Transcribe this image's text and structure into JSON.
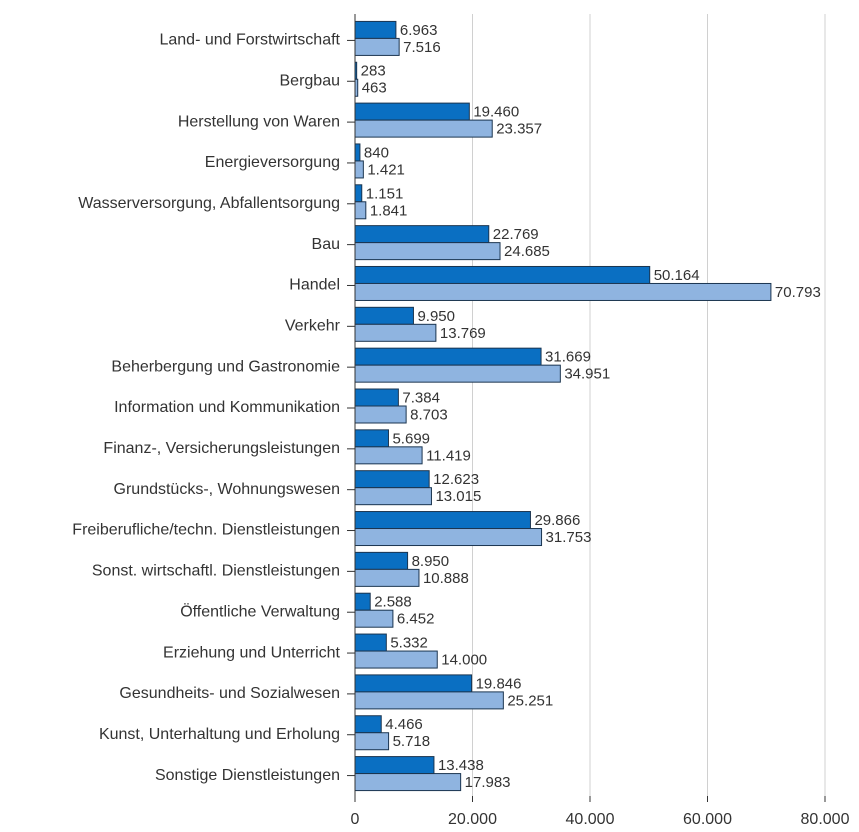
{
  "chart_data": {
    "type": "bar",
    "orientation": "horizontal",
    "categories": [
      "Land- und Forstwirtschaft",
      "Bergbau",
      "Herstellung von Waren",
      "Energieversorgung",
      "Wasserversorgung, Abfallentsorgung",
      "Bau",
      "Handel",
      "Verkehr",
      "Beherbergung und Gastronomie",
      "Information und Kommunikation",
      "Finanz-, Versicherungsleistungen",
      "Grundstücks-, Wohnungswesen",
      "Freiberufliche/techn. Dienstleistungen",
      "Sonst. wirtschaftl. Dienstleistungen",
      "Öffentliche Verwaltung",
      "Erziehung und Unterricht",
      "Gesundheits- und Sozialwesen",
      "Kunst, Unterhaltung und Erholung",
      "Sonstige Dienstleistungen"
    ],
    "series": [
      {
        "color": "#0a6fc2",
        "values": [
          6963,
          283,
          19460,
          840,
          1151,
          22769,
          50164,
          9950,
          31669,
          7384,
          5699,
          12623,
          29866,
          8950,
          2588,
          5332,
          19846,
          4466,
          13438
        ],
        "value_labels": [
          "6.963",
          "283",
          "19.460",
          "840",
          "1.151",
          "22.769",
          "50.164",
          "9.950",
          "31.669",
          "7.384",
          "5.699",
          "12.623",
          "29.866",
          "8.950",
          "2.588",
          "5.332",
          "19.846",
          "4.466",
          "13.438"
        ]
      },
      {
        "color": "#8fb4e0",
        "values": [
          7516,
          463,
          23357,
          1421,
          1841,
          24685,
          70793,
          13769,
          34951,
          8703,
          11419,
          13015,
          31753,
          10888,
          6452,
          14000,
          25251,
          5718,
          17983
        ],
        "value_labels": [
          "7.516",
          "463",
          "23.357",
          "1.421",
          "1.841",
          "24.685",
          "70.793",
          "13.769",
          "34.951",
          "8.703",
          "11.419",
          "13.015",
          "31.753",
          "10.888",
          "6.452",
          "14.000",
          "25.251",
          "5.718",
          "17.983"
        ]
      }
    ],
    "xlim": [
      0,
      80000
    ],
    "xticks": [
      0,
      {
        "value": 20000,
        "label": "20.000"
      },
      {
        "value": 40000,
        "label": "40.000"
      },
      {
        "value": 60000,
        "label": "60.000"
      },
      {
        "value": 80000,
        "label": "80.000"
      }
    ],
    "grid": true
  }
}
